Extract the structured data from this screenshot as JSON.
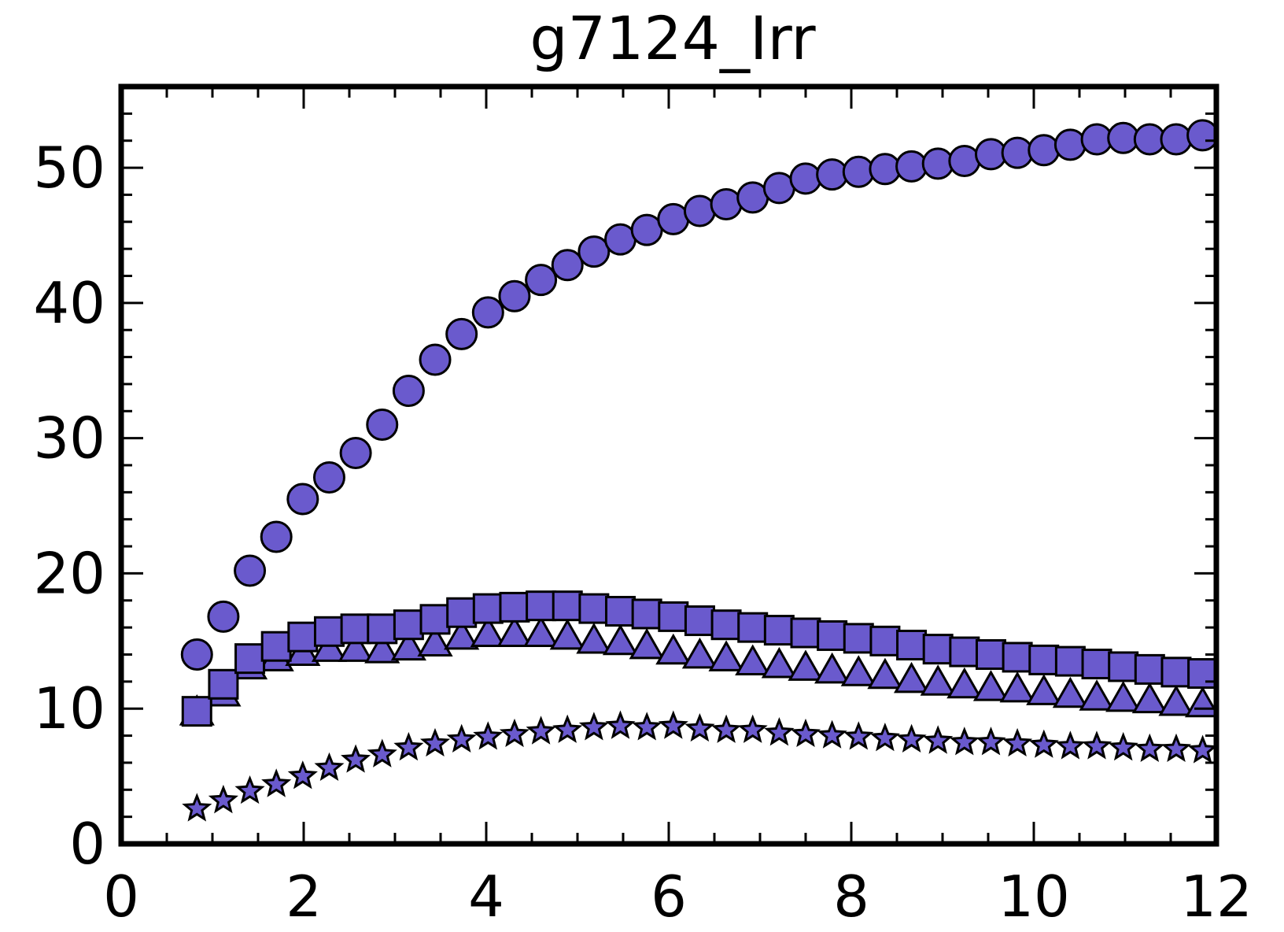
{
  "chart_data": {
    "type": "scatter",
    "title": "g7124_Irr",
    "xlabel": "",
    "ylabel": "",
    "xlim": [
      0,
      12
    ],
    "ylim": [
      0,
      56
    ],
    "xticks": [
      0,
      2,
      4,
      6,
      8,
      10,
      12
    ],
    "xtick_labels": [
      "0",
      "2",
      "4",
      "6",
      "8",
      "10",
      "12"
    ],
    "yticks": [
      0,
      10,
      20,
      30,
      40,
      50
    ],
    "ytick_labels": [
      "0",
      "10",
      "20",
      "30",
      "40",
      "50"
    ],
    "grid": false,
    "legend": "none",
    "marker_color": "#6A5ACD",
    "edge_color": "#000000",
    "x": [
      0.83,
      1.12,
      1.41,
      1.7,
      1.99,
      2.28,
      2.57,
      2.86,
      3.15,
      3.44,
      3.73,
      4.02,
      4.31,
      4.6,
      4.89,
      5.18,
      5.47,
      5.76,
      6.05,
      6.34,
      6.63,
      6.92,
      7.21,
      7.5,
      7.79,
      8.08,
      8.37,
      8.66,
      8.95,
      9.24,
      9.53,
      9.82,
      10.11,
      10.4,
      10.69,
      10.98,
      11.27,
      11.56,
      11.85
    ],
    "series": [
      {
        "marker": "circle",
        "values": [
          14.0,
          16.8,
          20.2,
          22.7,
          25.5,
          27.1,
          28.9,
          31.0,
          33.5,
          35.8,
          37.7,
          39.3,
          40.5,
          41.7,
          42.8,
          43.8,
          44.7,
          45.4,
          46.2,
          46.8,
          47.3,
          47.8,
          48.5,
          49.2,
          49.5,
          49.7,
          49.9,
          50.1,
          50.3,
          50.5,
          51.0,
          51.1,
          51.3,
          51.7,
          52.1,
          52.2,
          52.1,
          52.1,
          52.4
        ]
      },
      {
        "marker": "triangle",
        "values": [
          9.6,
          11.0,
          13.0,
          13.6,
          14.0,
          14.3,
          14.3,
          14.2,
          14.4,
          14.7,
          15.2,
          15.4,
          15.4,
          15.4,
          15.2,
          14.9,
          14.8,
          14.5,
          14.1,
          13.8,
          13.6,
          13.3,
          13.1,
          12.9,
          12.7,
          12.5,
          12.3,
          12.0,
          11.8,
          11.6,
          11.4,
          11.3,
          11.1,
          10.9,
          10.7,
          10.6,
          10.5,
          10.3,
          10.2
        ]
      },
      {
        "marker": "square",
        "values": [
          9.8,
          11.8,
          13.7,
          14.6,
          15.3,
          15.7,
          15.9,
          15.9,
          16.2,
          16.6,
          17.1,
          17.4,
          17.5,
          17.6,
          17.6,
          17.4,
          17.2,
          17.0,
          16.8,
          16.5,
          16.2,
          16.0,
          15.8,
          15.6,
          15.4,
          15.2,
          15.0,
          14.7,
          14.4,
          14.2,
          14.0,
          13.8,
          13.6,
          13.5,
          13.3,
          13.1,
          12.9,
          12.7,
          12.6
        ]
      },
      {
        "marker": "star",
        "values": [
          2.6,
          3.2,
          3.9,
          4.4,
          5.0,
          5.6,
          6.2,
          6.6,
          7.1,
          7.4,
          7.7,
          7.9,
          8.1,
          8.3,
          8.4,
          8.6,
          8.7,
          8.6,
          8.7,
          8.5,
          8.4,
          8.4,
          8.2,
          8.1,
          8.0,
          7.9,
          7.8,
          7.7,
          7.6,
          7.5,
          7.5,
          7.4,
          7.3,
          7.2,
          7.2,
          7.1,
          7.0,
          7.0,
          6.9
        ]
      }
    ]
  }
}
